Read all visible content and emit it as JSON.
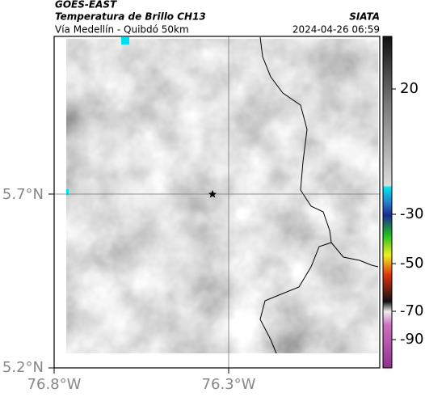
{
  "header": {
    "title": "GOES-EAST",
    "subtitle": "Temperatura de Brillo CH13",
    "route": "Vía Medellín - Quibdó 50km",
    "source": "SIATA",
    "timestamp": "2024-04-26 06:59"
  },
  "axes": {
    "y_labels": [
      "5.7°N",
      "5.2°N"
    ],
    "x_labels": [
      "76.8°W",
      "76.3°W"
    ]
  },
  "colorbar": {
    "labels": [
      "20",
      "-30",
      "-50",
      "-70",
      "-90"
    ]
  }
}
